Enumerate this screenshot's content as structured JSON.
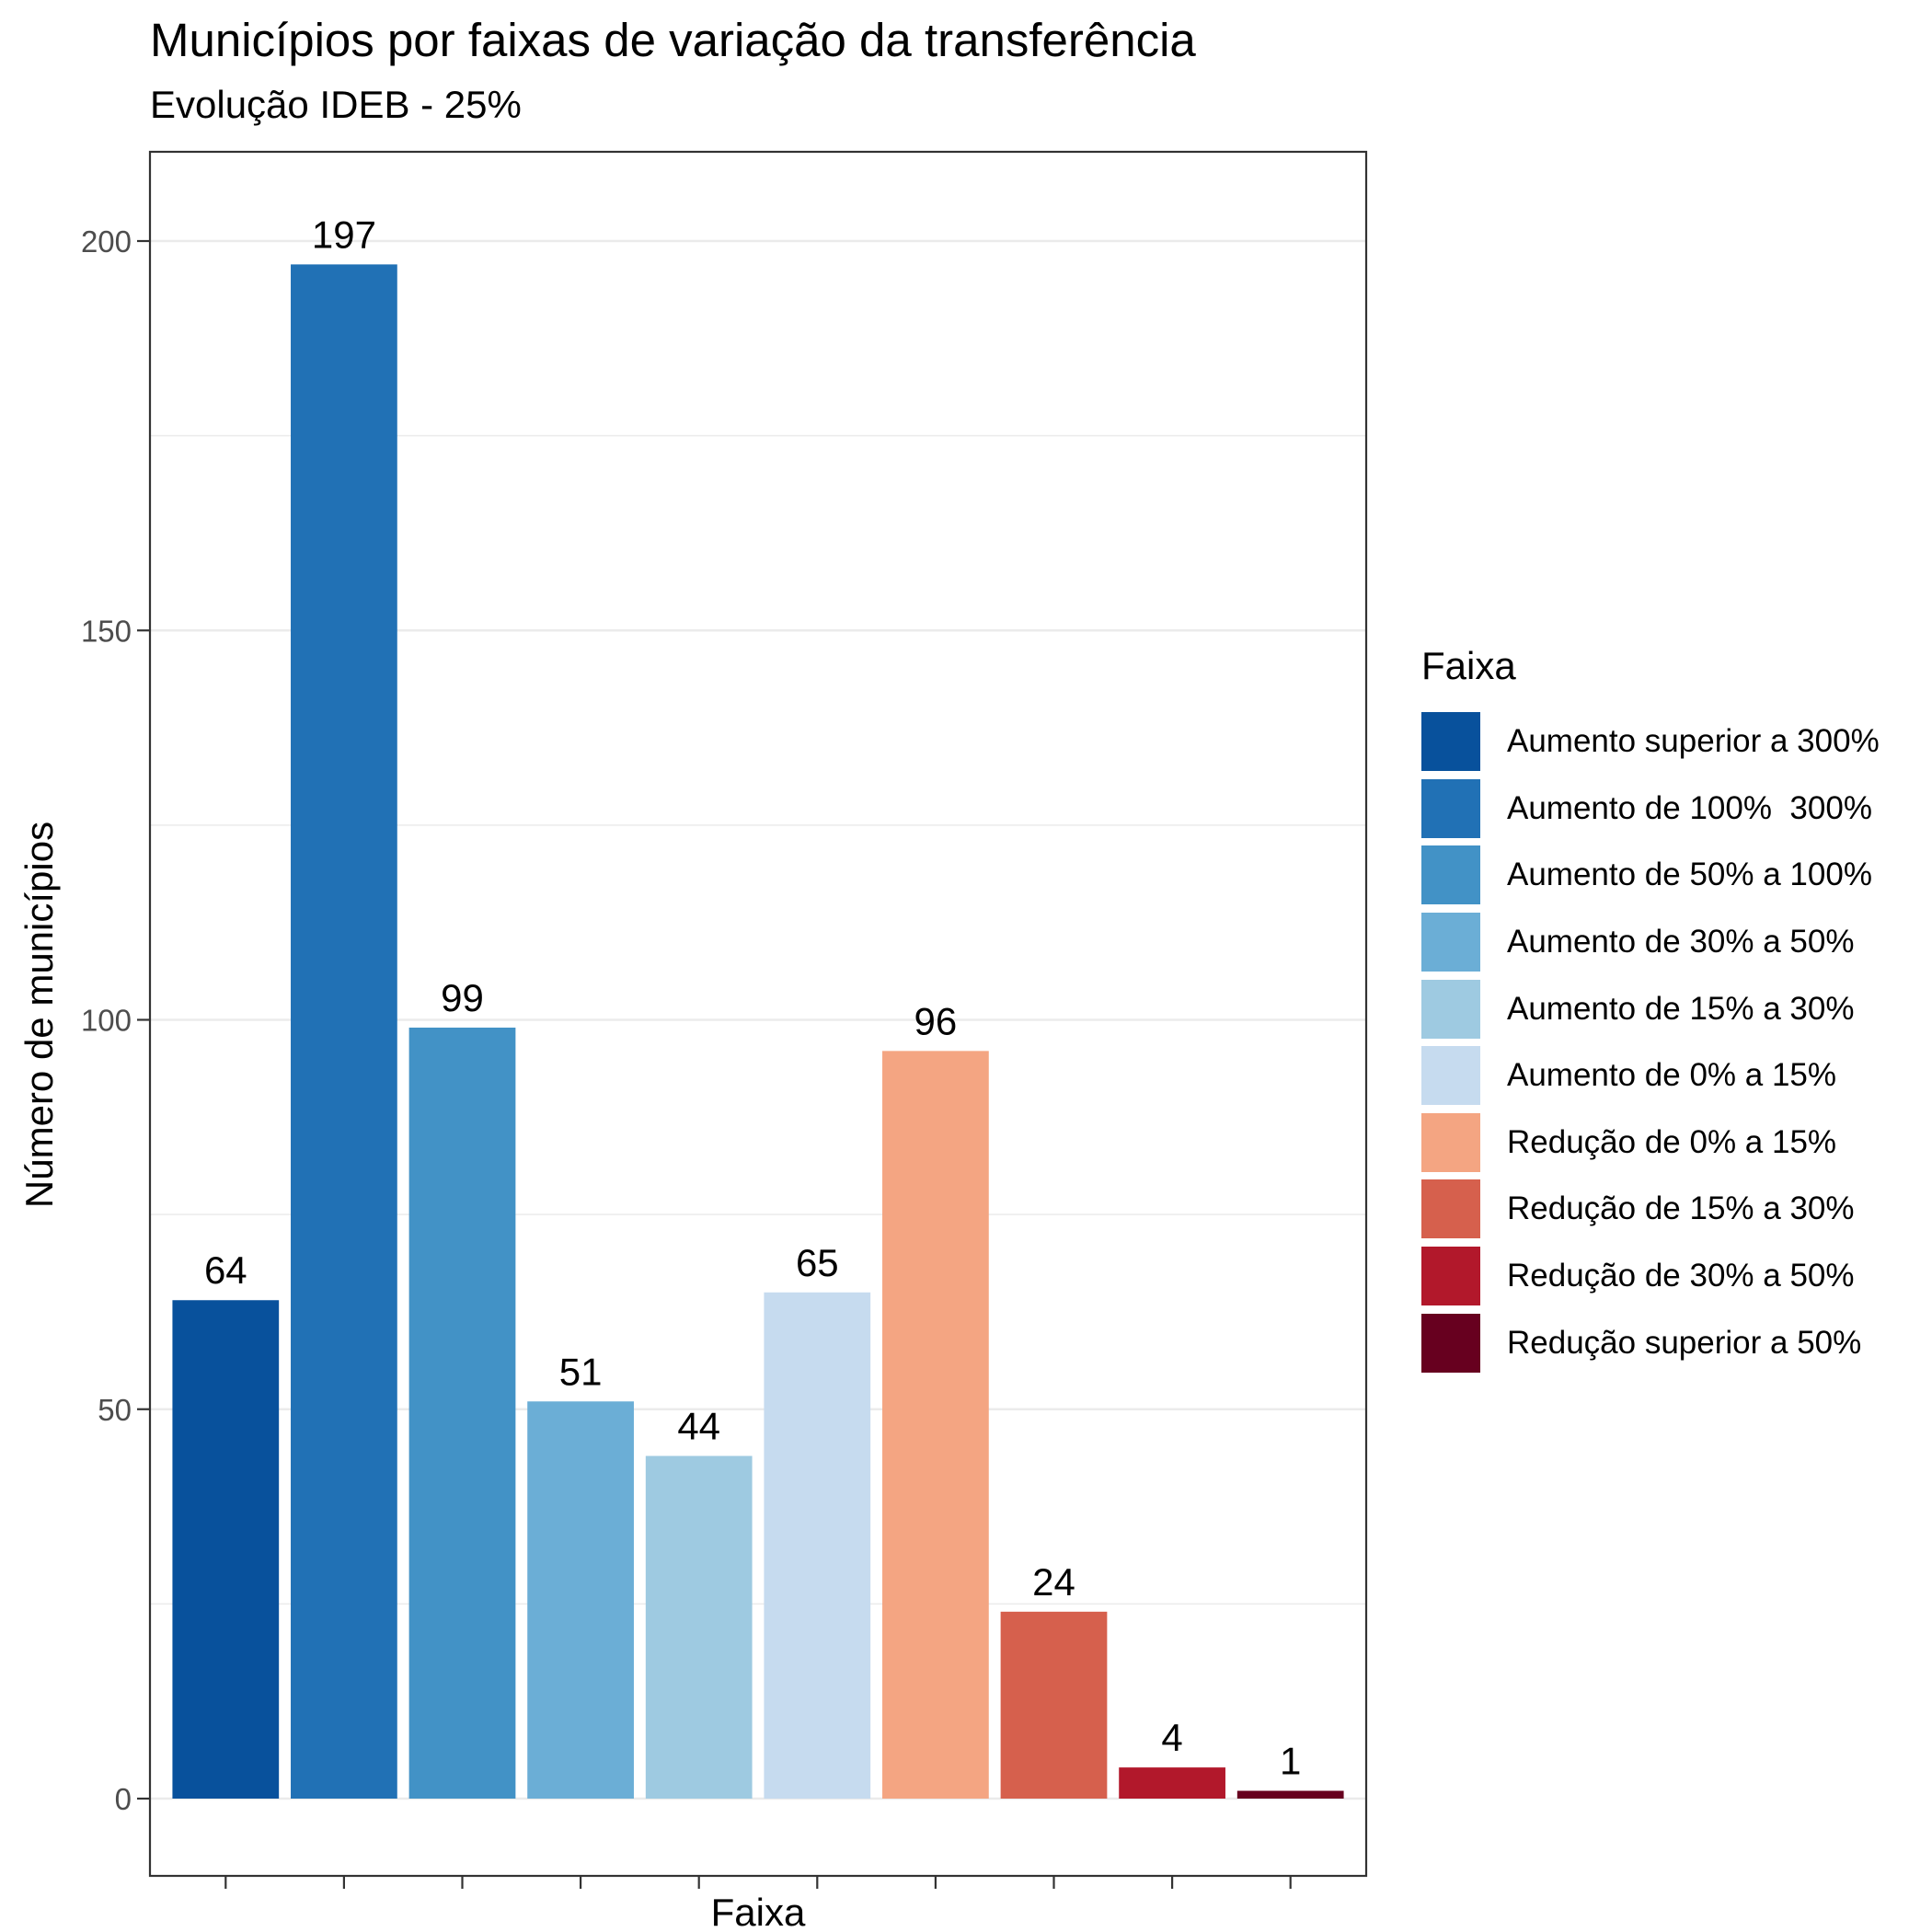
{
  "chart_data": {
    "type": "bar",
    "title": "Municípios por faixas de variação da transferência",
    "subtitle": "Evolução IDEB - 25%",
    "xlabel": "Faixa",
    "ylabel": "Número de municípios",
    "ylim": [
      -10,
      212
    ],
    "yticks": [
      0,
      50,
      100,
      150,
      200
    ],
    "grid": true,
    "legend_title": "Faixa",
    "legend_position": "right",
    "categories": [
      "Aumento superior a 300%",
      "Aumento de 100%  300%",
      "Aumento de 50% a 100%",
      "Aumento de 30% a 50%",
      "Aumento de 15% a 30%",
      "Aumento de 0% a 15%",
      "Redução de 0% a 15%",
      "Redução de 15% a 30%",
      "Redução de 30% a 50%",
      "Redução superior a 50%"
    ],
    "values": [
      64,
      197,
      99,
      51,
      44,
      65,
      96,
      24,
      4,
      1
    ],
    "data_labels": [
      "64",
      "197",
      "99",
      "51",
      "44",
      "65",
      "96",
      "24",
      "4",
      "1"
    ],
    "colors": [
      "#08519C",
      "#2171B5",
      "#4292C6",
      "#6BAED6",
      "#9ECAE1",
      "#C6DBEF",
      "#F4A582",
      "#D6604D",
      "#B2182B",
      "#67001F"
    ]
  }
}
